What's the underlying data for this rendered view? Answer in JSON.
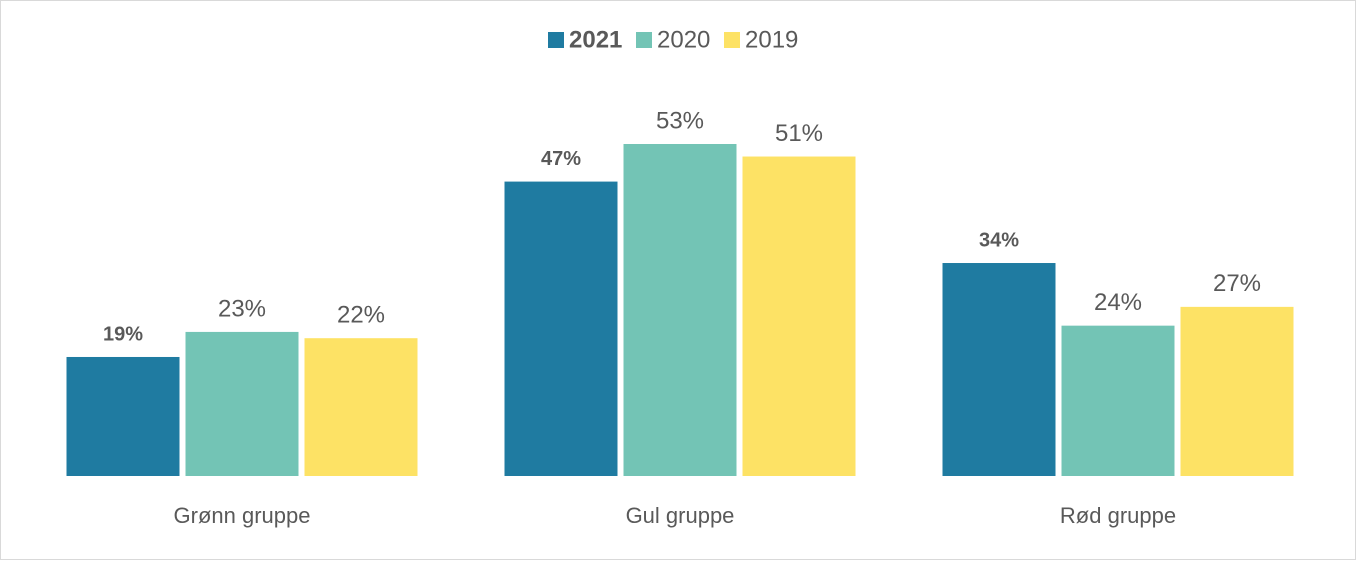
{
  "chart_data": {
    "type": "bar",
    "categories": [
      "Grønn gruppe",
      "Gul gruppe",
      "Rød gruppe"
    ],
    "series": [
      {
        "name": "2021",
        "color": "#1f7ba1",
        "values": [
          19,
          47,
          34
        ],
        "value_labels": [
          "19%",
          "47%",
          "34%"
        ]
      },
      {
        "name": "2020",
        "color": "#73c4b5",
        "values": [
          23,
          53,
          24
        ],
        "value_labels": [
          "23%",
          "53%",
          "24%"
        ]
      },
      {
        "name": "2019",
        "color": "#fde265",
        "values": [
          22,
          51,
          27
        ],
        "value_labels": [
          "22%",
          "51%",
          "27%"
        ]
      }
    ],
    "legend": "top"
  }
}
